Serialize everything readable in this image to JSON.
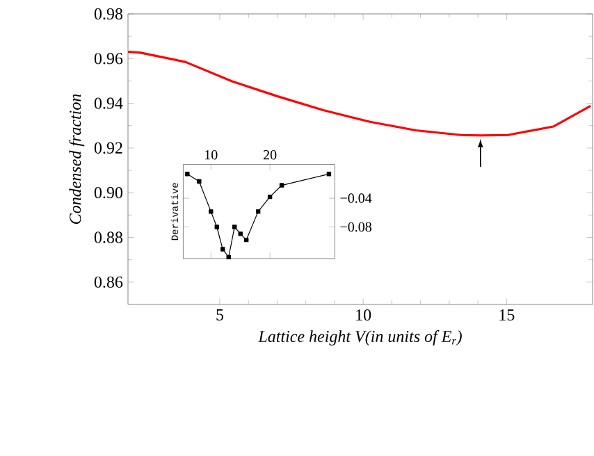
{
  "chart_data": [
    {
      "type": "line",
      "xlabel": "Lattice height V(in units of E$_{r}$)",
      "ylabel": "Condensed fraction",
      "xlim": [
        1.8,
        18
      ],
      "ylim": [
        0.85,
        0.98
      ],
      "xticks": [
        5,
        10,
        15
      ],
      "yticks": [
        0.86,
        0.88,
        {
          "value": 0.9,
          "label": "0.90"
        },
        0.92,
        0.94,
        0.96,
        0.98
      ],
      "series": [
        {
          "color": "#ff0000",
          "x": [
            1.8,
            2.21,
            3.8,
            5.43,
            7.02,
            8.61,
            10.24,
            11.83,
            13.41,
            14.09,
            15.05,
            16.63,
            17.93
          ],
          "values": [
            0.963,
            0.9627,
            0.9585,
            0.9498,
            0.9431,
            0.9369,
            0.9317,
            0.9279,
            0.9258,
            0.9256,
            0.9258,
            0.9296,
            0.9388
          ]
        }
      ],
      "marker": "none",
      "grid": false
    },
    {
      "type": "line",
      "ylabel": "Derivative",
      "xlim": [
        5.3,
        31
      ],
      "xticks": [
        10,
        20
      ],
      "ylim": [
        -0.124,
        0.007
      ],
      "yticks": [
        {
          "value": -0.04,
          "label": "−0.04"
        },
        {
          "value": -0.08,
          "label": "−0.08"
        }
      ],
      "series": [
        {
          "color": "#000000",
          "x": [
            6,
            8,
            10,
            11,
            12,
            13,
            14,
            15,
            16,
            18,
            20,
            22,
            30
          ],
          "values": [
            -0.0063,
            -0.0167,
            -0.0586,
            -0.08,
            -0.111,
            -0.122,
            -0.08,
            -0.0896,
            -0.098,
            -0.0586,
            -0.038,
            -0.022,
            -0.0063
          ]
        }
      ],
      "marker": "square",
      "grid": false
    }
  ]
}
